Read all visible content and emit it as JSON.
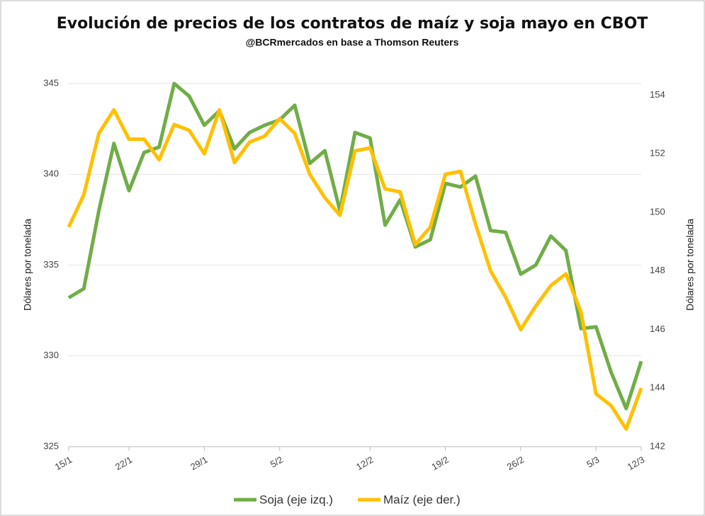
{
  "chart_data": {
    "type": "line",
    "title": "Evolución de precios de los contratos de maíz y soja mayo en CBOT",
    "subtitle": "@BCRmercados en base a Thomson Reuters",
    "y_label": "Dólares por tonelada",
    "y2_label": "Dólares por tonelada",
    "categories": [
      "15/1",
      null,
      null,
      null,
      "22/1",
      null,
      null,
      null,
      null,
      "29/1",
      null,
      null,
      null,
      null,
      "5/2",
      null,
      null,
      null,
      null,
      null,
      "12/2",
      null,
      null,
      null,
      null,
      "19/2",
      null,
      null,
      null,
      null,
      "26/2",
      null,
      null,
      null,
      null,
      "5/3",
      null,
      null,
      "12/3"
    ],
    "series": [
      {
        "name": "Soja (eje izq.)",
        "color": "#70ad47",
        "axis": "y",
        "values": [
          333.2,
          333.7,
          338.0,
          341.7,
          339.1,
          341.2,
          341.5,
          345.0,
          344.3,
          342.7,
          343.5,
          341.4,
          342.3,
          342.7,
          343.0,
          343.8,
          340.6,
          341.3,
          338.0,
          342.3,
          342.0,
          337.2,
          338.6,
          336.0,
          336.4,
          339.5,
          339.3,
          339.9,
          336.9,
          336.8,
          334.5,
          335.0,
          336.6,
          335.8,
          331.5,
          331.6,
          329.1,
          327.1,
          329.7
        ]
      },
      {
        "name": "Maíz (eje der.)",
        "color": "#ffc000",
        "axis": "y2",
        "values": [
          149.5,
          150.6,
          152.7,
          153.5,
          152.5,
          152.5,
          151.8,
          153.0,
          152.8,
          152.0,
          153.5,
          151.7,
          152.4,
          152.6,
          153.2,
          152.7,
          151.3,
          150.5,
          149.9,
          152.1,
          152.2,
          150.8,
          150.7,
          148.9,
          149.5,
          151.3,
          151.4,
          149.6,
          148.0,
          147.1,
          146.0,
          146.8,
          147.5,
          147.9,
          146.6,
          143.8,
          143.4,
          142.6,
          144.0
        ]
      }
    ],
    "ylim": [
      325,
      345
    ],
    "yticks": [
      325,
      330,
      335,
      340,
      345
    ],
    "y2lim": [
      142,
      154.4
    ],
    "y2ticks": [
      142,
      144,
      146,
      148,
      150,
      152,
      154
    ],
    "grid": true,
    "legend": "bottom"
  }
}
